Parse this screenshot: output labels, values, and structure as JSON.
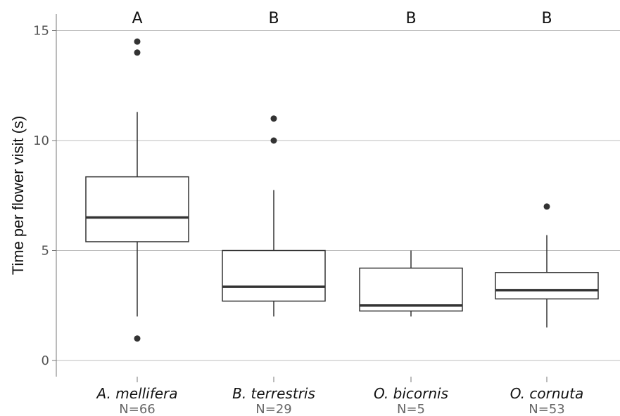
{
  "chart_data": {
    "type": "box",
    "title": "",
    "xlabel": "",
    "ylabel": "Time per flower visit (s)",
    "ylim": [
      -0.9,
      15.9
    ],
    "yticks": [
      0,
      5,
      10,
      15
    ],
    "grid": "horizontal",
    "colors": {
      "box_fill": "#ffffff",
      "stroke": "#333333",
      "grid": "#bdbdbd",
      "outlier": "#333333"
    },
    "categories": [
      {
        "name": "A. mellifera",
        "n_label": "N=66",
        "significance": "A",
        "whisker_low": 2.0,
        "q1": 5.4,
        "median": 6.5,
        "q3": 8.35,
        "whisker_high": 11.3,
        "outliers": [
          14.5,
          14.0,
          1.0
        ]
      },
      {
        "name": "B. terrestris",
        "n_label": "N=29",
        "significance": "B",
        "whisker_low": 2.0,
        "q1": 2.7,
        "median": 3.35,
        "q3": 5.0,
        "whisker_high": 7.75,
        "outliers": [
          11.0,
          10.0
        ]
      },
      {
        "name": "O. bicornis",
        "n_label": "N=5",
        "significance": "B",
        "whisker_low": 2.0,
        "q1": 2.25,
        "median": 2.5,
        "q3": 4.2,
        "whisker_high": 5.0,
        "outliers": []
      },
      {
        "name": "O. cornuta",
        "n_label": "N=53",
        "significance": "B",
        "whisker_low": 1.5,
        "q1": 2.8,
        "median": 3.2,
        "q3": 4.0,
        "whisker_high": 5.7,
        "outliers": [
          7.0
        ]
      }
    ]
  }
}
